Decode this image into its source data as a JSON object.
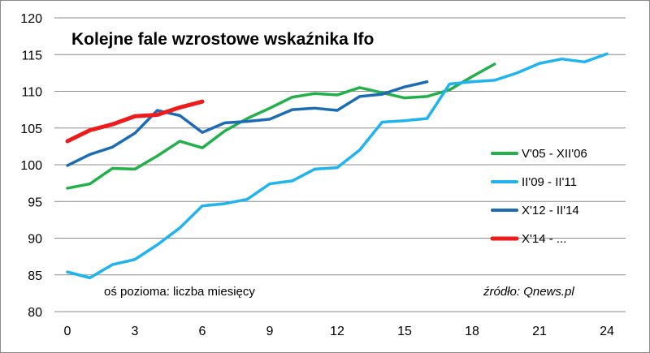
{
  "chart_data": {
    "type": "line",
    "title": "Kolejne fale wzrostowe wskaźnika Ifo",
    "axis_note": "oś pozioma: liczba miesięcy",
    "source": "źródło: Qnews.pl",
    "xlim": [
      0,
      24
    ],
    "ylim": [
      80,
      120
    ],
    "x_ticks": [
      0,
      3,
      6,
      9,
      12,
      15,
      18,
      21,
      24
    ],
    "y_ticks": [
      80,
      85,
      90,
      95,
      100,
      105,
      110,
      115,
      120
    ],
    "grid": "horizontal",
    "legend_position": "right",
    "series": [
      {
        "name": "V'05 - XII'06",
        "color": "#22b04b",
        "values": [
          96.8,
          97.4,
          99.5,
          99.4,
          101.2,
          103.2,
          102.3,
          104.6,
          106.3,
          107.7,
          109.2,
          109.7,
          109.5,
          110.5,
          109.8,
          109.1,
          109.3,
          110.2,
          112.0,
          113.7
        ]
      },
      {
        "name": "II'09 - II'11",
        "color": "#1fb3ef",
        "values": [
          85.4,
          84.6,
          86.4,
          87.1,
          89.1,
          91.4,
          94.4,
          94.7,
          95.3,
          97.4,
          97.8,
          99.4,
          99.6,
          102.0,
          105.8,
          106.0,
          106.3,
          111.0,
          111.3,
          111.5,
          112.5,
          113.8,
          114.4,
          114.0,
          115.1
        ]
      },
      {
        "name": "X'12 - II'14",
        "color": "#1b6cb5",
        "values": [
          99.9,
          101.4,
          102.4,
          104.3,
          107.4,
          106.7,
          104.4,
          105.7,
          105.9,
          106.2,
          107.5,
          107.7,
          107.4,
          109.3,
          109.6,
          110.6,
          111.3
        ]
      },
      {
        "name": "X'14 - ...",
        "color": "#ee1b1b",
        "values": [
          103.2,
          104.7,
          105.5,
          106.6,
          106.8,
          107.8,
          108.6
        ]
      }
    ]
  }
}
